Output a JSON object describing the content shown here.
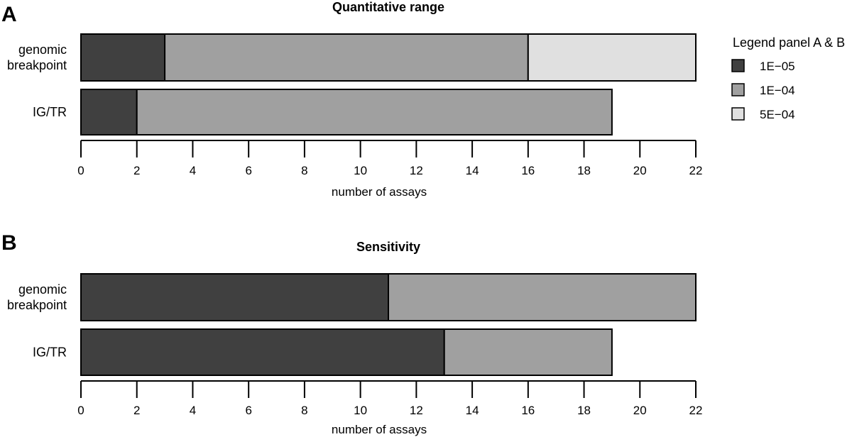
{
  "colors": {
    "1E-05": "#404040",
    "1E-04": "#a0a0a0",
    "5E-04": "#e0e0e0",
    "stroke": "#000000"
  },
  "legend": {
    "title": "Legend panel A & B",
    "placement": "right",
    "entries": [
      "1E−05",
      "1E−04",
      "5E−04"
    ],
    "keys": [
      "1E-05",
      "1E-04",
      "5E-04"
    ]
  },
  "chart_data": [
    {
      "panel": "A",
      "type": "bar",
      "orientation": "horizontal",
      "stacked": true,
      "title": "Quantitative range",
      "xlabel": "number of assays",
      "xlim": [
        0,
        22
      ],
      "xticks": [
        0,
        2,
        4,
        6,
        8,
        10,
        12,
        14,
        16,
        18,
        20,
        22
      ],
      "categories": [
        [
          "genomic",
          "breakpoint"
        ],
        [
          "IG/TR"
        ]
      ],
      "series": [
        {
          "name": "1E−05",
          "key": "1E-05",
          "values": [
            3,
            2
          ]
        },
        {
          "name": "1E−04",
          "key": "1E-04",
          "values": [
            13,
            17
          ]
        },
        {
          "name": "5E−04",
          "key": "5E-04",
          "values": [
            6,
            0
          ]
        }
      ],
      "grid": false
    },
    {
      "panel": "B",
      "type": "bar",
      "orientation": "horizontal",
      "stacked": true,
      "title": "Sensitivity",
      "xlabel": "number of assays",
      "xlim": [
        0,
        22
      ],
      "xticks": [
        0,
        2,
        4,
        6,
        8,
        10,
        12,
        14,
        16,
        18,
        20,
        22
      ],
      "categories": [
        [
          "genomic",
          "breakpoint"
        ],
        [
          "IG/TR"
        ]
      ],
      "series": [
        {
          "name": "1E−05",
          "key": "1E-05",
          "values": [
            11,
            13
          ]
        },
        {
          "name": "1E−04",
          "key": "1E-04",
          "values": [
            11,
            6
          ]
        }
      ],
      "grid": false
    }
  ]
}
